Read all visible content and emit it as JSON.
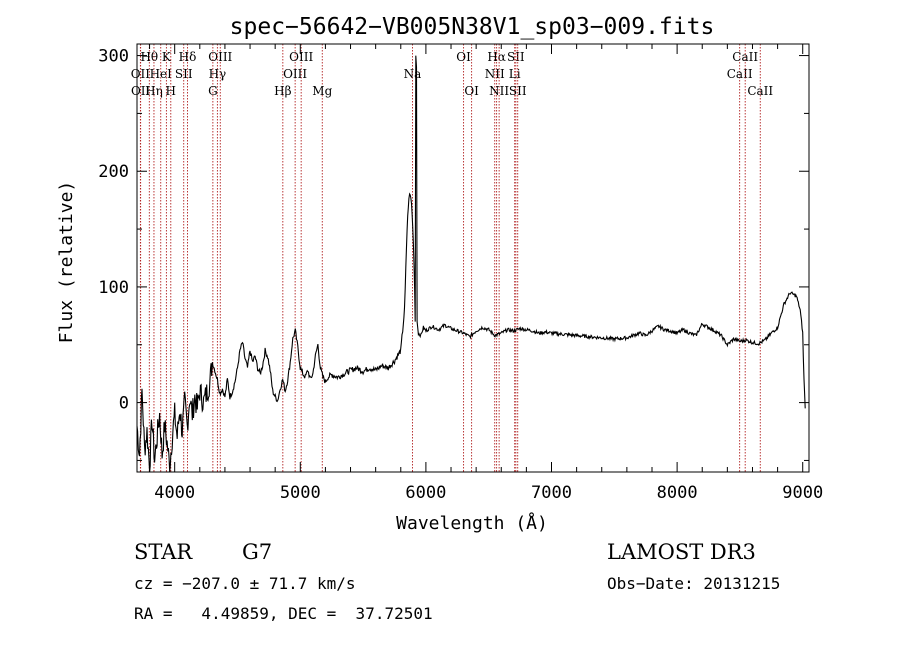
{
  "chart_data": {
    "type": "line",
    "title": "spec−56642−VB005N38V1_sp03−009.fits",
    "xlabel": "Wavelength (Å)",
    "ylabel": "Flux (relative)",
    "xlim": [
      3700,
      9050
    ],
    "ylim": [
      -60,
      310
    ],
    "x_ticks": [
      4000,
      5000,
      6000,
      7000,
      8000,
      9000
    ],
    "y_ticks": [
      0,
      100,
      200,
      300
    ],
    "grid": false,
    "series": [
      {
        "name": "spectrum",
        "points": [
          [
            3700,
            -20
          ],
          [
            3720,
            -45
          ],
          [
            3740,
            10
          ],
          [
            3760,
            -40
          ],
          [
            3780,
            -25
          ],
          [
            3800,
            -55
          ],
          [
            3820,
            -15
          ],
          [
            3840,
            -50
          ],
          [
            3860,
            -30
          ],
          [
            3880,
            -10
          ],
          [
            3900,
            -45
          ],
          [
            3920,
            -20
          ],
          [
            3940,
            -35
          ],
          [
            3960,
            -55
          ],
          [
            3980,
            -30
          ],
          [
            4000,
            -10
          ],
          [
            4020,
            -30
          ],
          [
            4040,
            -5
          ],
          [
            4060,
            -25
          ],
          [
            4080,
            0
          ],
          [
            4100,
            -20
          ],
          [
            4120,
            5
          ],
          [
            4140,
            -10
          ],
          [
            4160,
            5
          ],
          [
            4180,
            -5
          ],
          [
            4200,
            10
          ],
          [
            4230,
            0
          ],
          [
            4260,
            10
          ],
          [
            4280,
            18
          ],
          [
            4300,
            35
          ],
          [
            4320,
            28
          ],
          [
            4340,
            20
          ],
          [
            4360,
            8
          ],
          [
            4380,
            12
          ],
          [
            4400,
            5
          ],
          [
            4420,
            20
          ],
          [
            4440,
            5
          ],
          [
            4460,
            10
          ],
          [
            4480,
            18
          ],
          [
            4500,
            30
          ],
          [
            4520,
            45
          ],
          [
            4540,
            52
          ],
          [
            4560,
            38
          ],
          [
            4580,
            30
          ],
          [
            4600,
            45
          ],
          [
            4620,
            35
          ],
          [
            4640,
            40
          ],
          [
            4660,
            30
          ],
          [
            4680,
            25
          ],
          [
            4700,
            32
          ],
          [
            4720,
            45
          ],
          [
            4740,
            40
          ],
          [
            4760,
            28
          ],
          [
            4780,
            10
          ],
          [
            4800,
            5
          ],
          [
            4820,
            2
          ],
          [
            4840,
            12
          ],
          [
            4860,
            20
          ],
          [
            4880,
            10
          ],
          [
            4900,
            20
          ],
          [
            4920,
            35
          ],
          [
            4940,
            55
          ],
          [
            4960,
            62
          ],
          [
            4980,
            48
          ],
          [
            5000,
            30
          ],
          [
            5020,
            25
          ],
          [
            5040,
            22
          ],
          [
            5060,
            28
          ],
          [
            5080,
            20
          ],
          [
            5100,
            25
          ],
          [
            5120,
            40
          ],
          [
            5140,
            50
          ],
          [
            5160,
            30
          ],
          [
            5180,
            22
          ],
          [
            5200,
            18
          ],
          [
            5220,
            22
          ],
          [
            5250,
            24
          ],
          [
            5300,
            22
          ],
          [
            5350,
            25
          ],
          [
            5400,
            28
          ],
          [
            5450,
            30
          ],
          [
            5500,
            27
          ],
          [
            5550,
            30
          ],
          [
            5600,
            28
          ],
          [
            5650,
            32
          ],
          [
            5700,
            30
          ],
          [
            5750,
            36
          ],
          [
            5800,
            45
          ],
          [
            5830,
            80
          ],
          [
            5850,
            150
          ],
          [
            5860,
            170
          ],
          [
            5870,
            180
          ],
          [
            5880,
            178
          ],
          [
            5890,
            165
          ],
          [
            5900,
            140
          ],
          [
            5910,
            100
          ],
          [
            5915,
            70
          ],
          [
            5920,
            300
          ],
          [
            5925,
            290
          ],
          [
            5930,
            70
          ],
          [
            5940,
            60
          ],
          [
            5960,
            58
          ],
          [
            5980,
            65
          ],
          [
            6000,
            62
          ],
          [
            6050,
            66
          ],
          [
            6100,
            63
          ],
          [
            6150,
            67
          ],
          [
            6200,
            64
          ],
          [
            6250,
            62
          ],
          [
            6300,
            60
          ],
          [
            6350,
            57
          ],
          [
            6400,
            62
          ],
          [
            6450,
            65
          ],
          [
            6500,
            63
          ],
          [
            6550,
            58
          ],
          [
            6600,
            60
          ],
          [
            6650,
            63
          ],
          [
            6700,
            62
          ],
          [
            6750,
            64
          ],
          [
            6800,
            63
          ],
          [
            6850,
            62
          ],
          [
            6900,
            60
          ],
          [
            6950,
            61
          ],
          [
            7000,
            60
          ],
          [
            7100,
            59
          ],
          [
            7200,
            58
          ],
          [
            7300,
            57
          ],
          [
            7400,
            56
          ],
          [
            7500,
            55
          ],
          [
            7600,
            56
          ],
          [
            7700,
            60
          ],
          [
            7750,
            58
          ],
          [
            7800,
            62
          ],
          [
            7850,
            66
          ],
          [
            7900,
            63
          ],
          [
            7950,
            62
          ],
          [
            8000,
            60
          ],
          [
            8050,
            63
          ],
          [
            8100,
            60
          ],
          [
            8150,
            58
          ],
          [
            8200,
            68
          ],
          [
            8250,
            65
          ],
          [
            8300,
            62
          ],
          [
            8350,
            58
          ],
          [
            8400,
            50
          ],
          [
            8450,
            55
          ],
          [
            8500,
            53
          ],
          [
            8550,
            54
          ],
          [
            8600,
            52
          ],
          [
            8650,
            51
          ],
          [
            8700,
            54
          ],
          [
            8750,
            60
          ],
          [
            8800,
            65
          ],
          [
            8850,
            85
          ],
          [
            8900,
            95
          ],
          [
            8950,
            92
          ],
          [
            8980,
            80
          ],
          [
            9000,
            60
          ],
          [
            9010,
            20
          ],
          [
            9020,
            -5
          ]
        ]
      }
    ],
    "line_markers": [
      {
        "label": "Hθ",
        "x": 3798,
        "row": 0
      },
      {
        "label": "OII",
        "x": 3727,
        "row": 1
      },
      {
        "label": "OII",
        "x": 3729,
        "row": 2
      },
      {
        "label": "Hη",
        "x": 3835,
        "row": 2
      },
      {
        "label": "HeI",
        "x": 3889,
        "row": 1
      },
      {
        "label": "K",
        "x": 3934,
        "row": 0
      },
      {
        "label": "H",
        "x": 3969,
        "row": 2
      },
      {
        "label": "SII",
        "x": 4072,
        "row": 1
      },
      {
        "label": "Hδ",
        "x": 4102,
        "row": 0
      },
      {
        "label": "OIII",
        "x": 4363,
        "row": 0
      },
      {
        "label": "Hγ",
        "x": 4340,
        "row": 1
      },
      {
        "label": "G",
        "x": 4304,
        "row": 2
      },
      {
        "label": "Hβ",
        "x": 4861,
        "row": 2
      },
      {
        "label": "OIII",
        "x": 4959,
        "row": 1
      },
      {
        "label": "OIII",
        "x": 5007,
        "row": 0
      },
      {
        "label": "Mg",
        "x": 5175,
        "row": 2
      },
      {
        "label": "Na",
        "x": 5893,
        "row": 1
      },
      {
        "label": "OI",
        "x": 6300,
        "row": 0
      },
      {
        "label": "OI",
        "x": 6364,
        "row": 2
      },
      {
        "label": "NII",
        "x": 6548,
        "row": 1
      },
      {
        "label": "Hα",
        "x": 6563,
        "row": 0
      },
      {
        "label": "NII",
        "x": 6583,
        "row": 2
      },
      {
        "label": "SII",
        "x": 6716,
        "row": 0
      },
      {
        "label": "Li",
        "x": 6707,
        "row": 1
      },
      {
        "label": "SII",
        "x": 6731,
        "row": 2
      },
      {
        "label": "CaII",
        "x": 8498,
        "row": 1
      },
      {
        "label": "CaII",
        "x": 8542,
        "row": 0
      },
      {
        "label": "CaII",
        "x": 8662,
        "row": 2
      }
    ],
    "colors": {
      "spectrum": "#000000",
      "marker": "#b22222",
      "axes": "#000000"
    }
  },
  "info": {
    "class": "STAR",
    "subclass": "G7",
    "survey": "LAMOST DR3",
    "cz": "cz = −207.0 ± 71.7 km/s",
    "obs_date": "Obs−Date: 20131215",
    "radec": "RA =   4.49859, DEC =  37.72501"
  }
}
